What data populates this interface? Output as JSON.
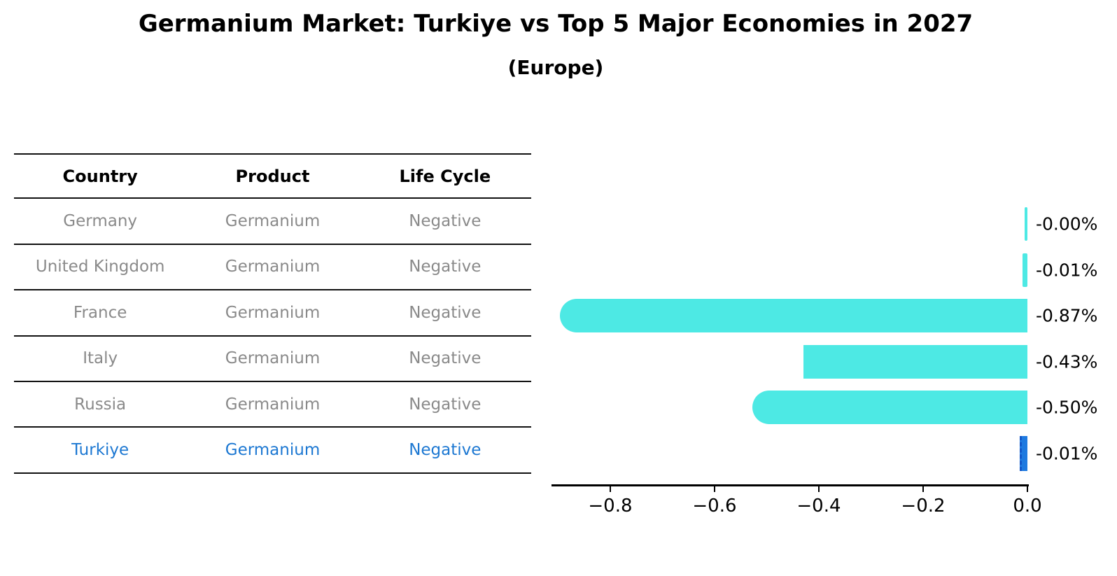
{
  "title": "Germanium Market: Turkiye vs Top 5 Major Economies in 2027",
  "subtitle": "(Europe)",
  "table": {
    "headers": [
      "Country",
      "Product",
      "Life Cycle"
    ],
    "rows": [
      {
        "country": "Germany",
        "product": "Germanium",
        "life_cycle": "Negative",
        "highlighted": false
      },
      {
        "country": "United Kingdom",
        "product": "Germanium",
        "life_cycle": "Negative",
        "highlighted": false
      },
      {
        "country": "France",
        "product": "Germanium",
        "life_cycle": "Negative",
        "highlighted": false
      },
      {
        "country": "Italy",
        "product": "Germanium",
        "life_cycle": "Negative",
        "highlighted": false
      },
      {
        "country": "Russia",
        "product": "Germanium",
        "life_cycle": "Negative",
        "highlighted": false
      },
      {
        "country": "Turkiye",
        "product": "Germanium",
        "life_cycle": "Negative",
        "highlighted": true
      }
    ]
  },
  "chart_data": {
    "type": "bar",
    "orientation": "horizontal",
    "title": "",
    "xlabel": "",
    "ylabel": "",
    "categories": [
      "Germany",
      "United Kingdom",
      "France",
      "Italy",
      "Russia",
      "Turkiye"
    ],
    "values": [
      -0.0,
      -0.01,
      -0.87,
      -0.43,
      -0.5,
      -0.01
    ],
    "value_labels": [
      "-0.00%",
      "-0.01%",
      "-0.87%",
      "-0.43%",
      "-0.50%",
      "-0.01%"
    ],
    "xlim": [
      -0.91,
      0.0
    ],
    "x_tick_values": [
      -0.8,
      -0.6,
      -0.4,
      -0.2,
      0.0
    ],
    "x_tick_labels": [
      "−0.8",
      "−0.6",
      "−0.4",
      "−0.2",
      "0.0"
    ],
    "grid": false,
    "legend": false,
    "bar_color": "#4de9e4",
    "highlight_index": 5,
    "highlight_bar_color": "#1e7ae0",
    "highlight_bar_edge_color": "#1257c8",
    "highlight_text_color": "#1d78d2",
    "rounded_left_caps": [
      false,
      false,
      true,
      false,
      true,
      false
    ]
  }
}
